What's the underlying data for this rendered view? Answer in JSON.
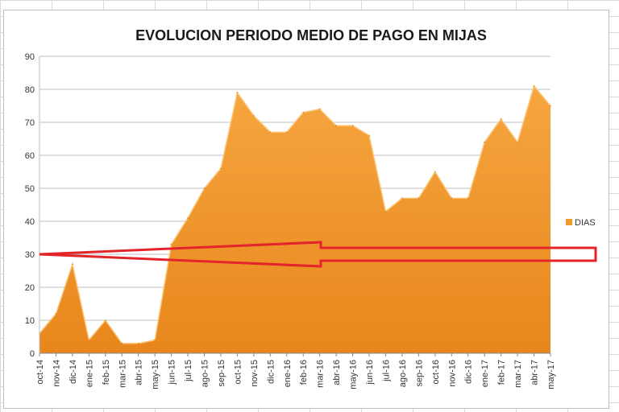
{
  "chart_data": {
    "type": "area",
    "title": "EVOLUCION PERIODO MEDIO DE PAGO EN MIJAS",
    "xlabel": "",
    "ylabel": "",
    "ylim": [
      0,
      90
    ],
    "yticks": [
      0,
      10,
      20,
      30,
      40,
      50,
      60,
      70,
      80,
      90
    ],
    "grid": true,
    "legend": {
      "position": "right",
      "entries": [
        "DIAS"
      ]
    },
    "categories": [
      "oct-14",
      "nov-14",
      "dic-14",
      "ene-15",
      "feb-15",
      "mar-15",
      "abr-15",
      "may-15",
      "jun-15",
      "jul-15",
      "ago-15",
      "sep-15",
      "oct-15",
      "nov-15",
      "dic-15",
      "ene-16",
      "feb-16",
      "mar-16",
      "abr-16",
      "may-16",
      "jun-16",
      "jul-16",
      "ago-16",
      "sep-16",
      "oct-16",
      "nov-16",
      "dic-16",
      "ene-17",
      "feb-17",
      "mar-17",
      "abr-17",
      "may-17"
    ],
    "series": [
      {
        "name": "DIAS",
        "color": "#f39a2e",
        "values": [
          6,
          12,
          27,
          4,
          10,
          3,
          3,
          4,
          33,
          41,
          50,
          56,
          79,
          72,
          67,
          67,
          73,
          74,
          69,
          69,
          66,
          43,
          47,
          47,
          55,
          47,
          47,
          64,
          71,
          64,
          81,
          75
        ]
      }
    ],
    "annotation": {
      "type": "arrow",
      "points_to_value": 30,
      "color": "#e3242b"
    }
  }
}
